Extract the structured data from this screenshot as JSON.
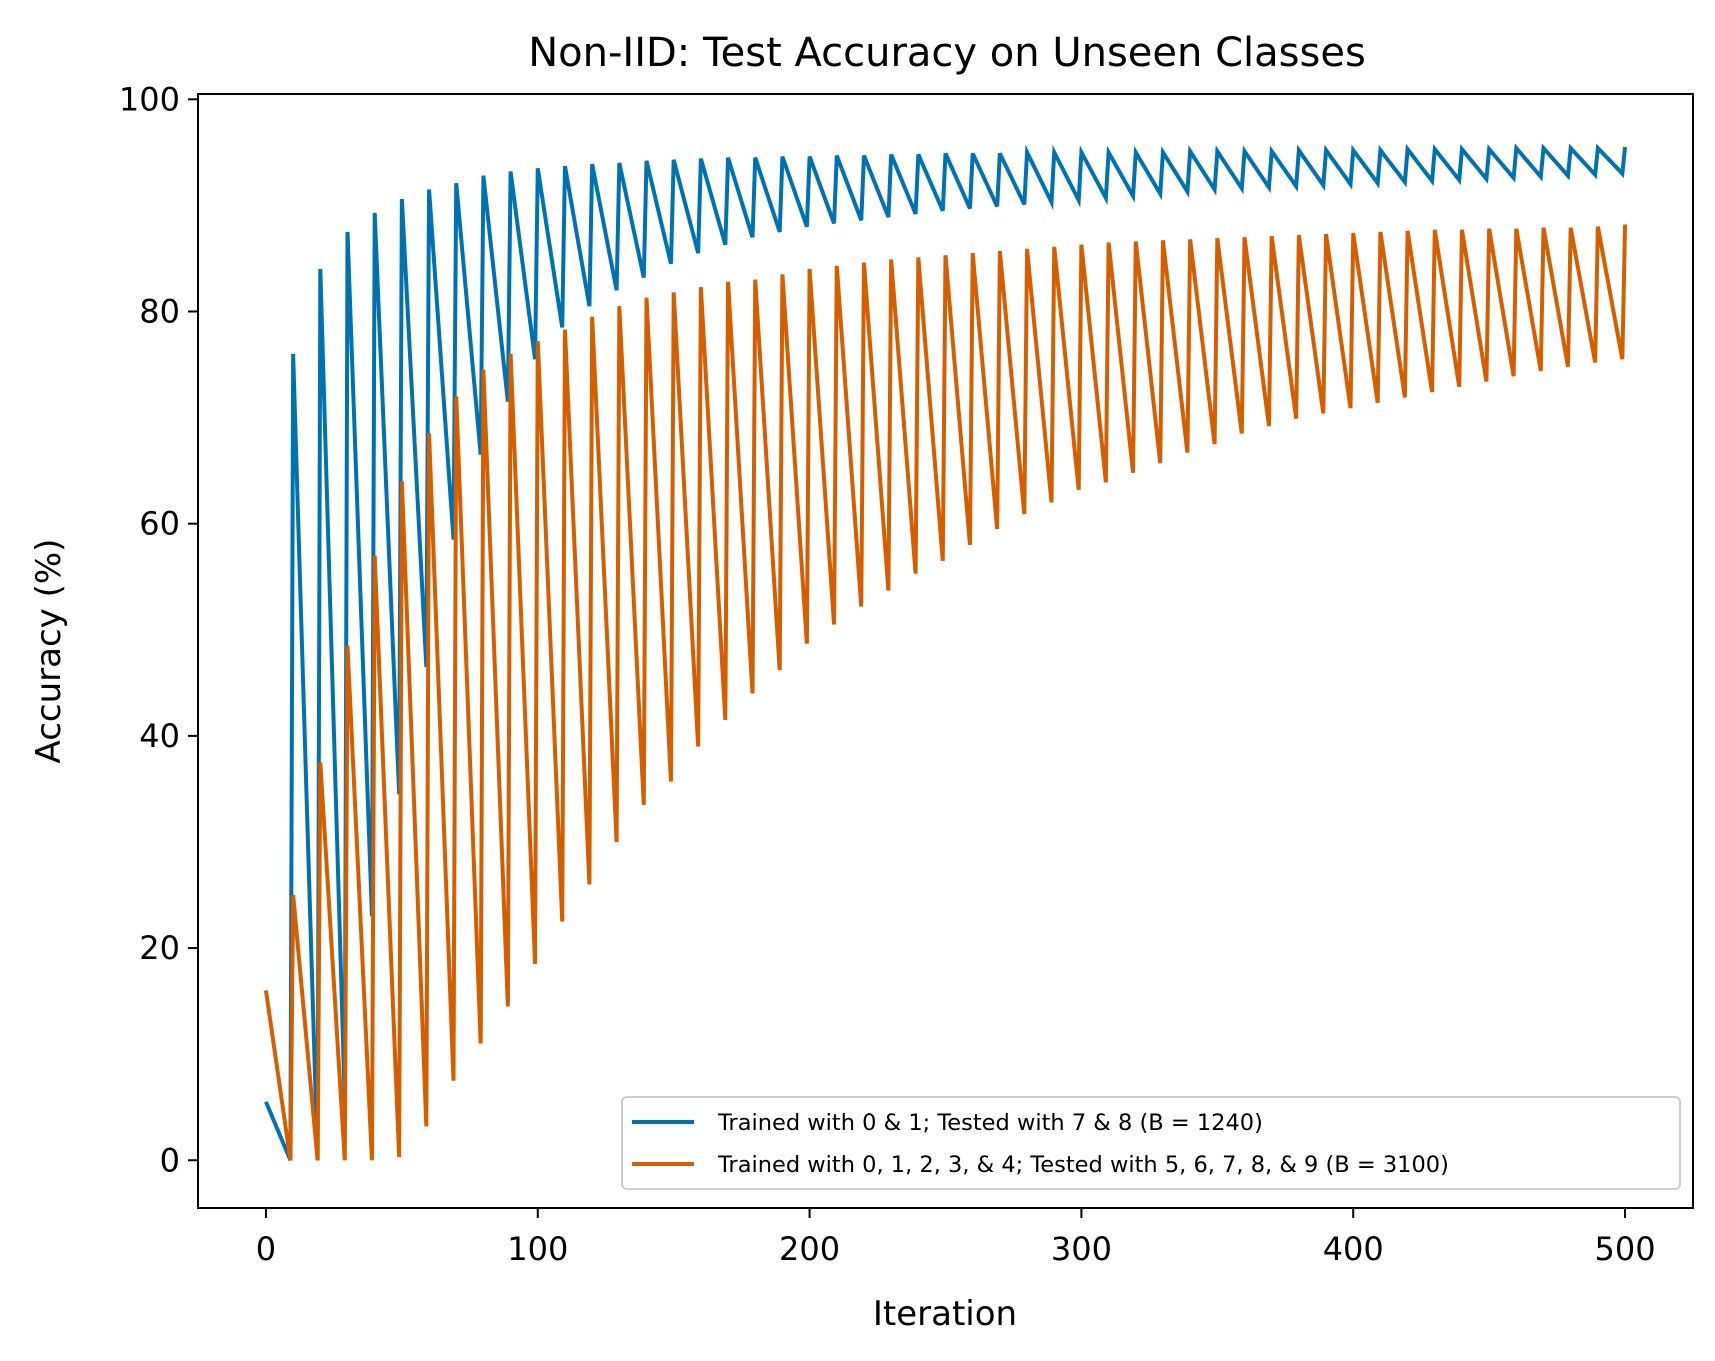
{
  "chart_data": {
    "type": "line",
    "title": "Non-IID: Test Accuracy on Unseen Classes",
    "xlabel": "Iteration",
    "ylabel": "Accuracy (%)",
    "xlim": [
      -25,
      525
    ],
    "ylim": [
      -4.5,
      100.5
    ],
    "xticks": [
      0,
      100,
      200,
      300,
      400,
      500
    ],
    "yticks": [
      0,
      20,
      40,
      60,
      80,
      100
    ],
    "legend_position": "lower-right",
    "pattern": "sawtooth: value drops linearly from the peak to the trough over each 9-iteration window, then jumps back up at every multiple of 10",
    "series": [
      {
        "name": "Trained with 0 & 1; Tested with 7 & 8 (B = 1240)",
        "color": "#0072b2",
        "cycle_start_iterations": [
          0,
          10,
          20,
          30,
          40,
          50,
          60,
          70,
          80,
          90,
          100,
          110,
          120,
          130,
          140,
          150,
          160,
          170,
          180,
          190,
          200,
          210,
          220,
          230,
          240,
          250,
          260,
          270,
          280,
          290,
          300,
          310,
          320,
          330,
          340,
          350,
          360,
          370,
          380,
          390,
          400,
          410,
          420,
          430,
          440,
          450,
          460,
          470,
          480,
          490
        ],
        "peaks": [
          5.5,
          76.0,
          84.0,
          87.5,
          89.3,
          90.6,
          91.5,
          92.1,
          92.8,
          93.2,
          93.5,
          93.7,
          93.9,
          94.0,
          94.2,
          94.3,
          94.4,
          94.5,
          94.5,
          94.6,
          94.6,
          94.7,
          94.7,
          94.8,
          94.8,
          94.9,
          94.9,
          94.9,
          95.0,
          95.0,
          95.0,
          95.0,
          95.0,
          95.0,
          95.1,
          95.1,
          95.1,
          95.1,
          95.2,
          95.2,
          95.2,
          95.2,
          95.3,
          95.3,
          95.3,
          95.3,
          95.4,
          95.4,
          95.4,
          95.4
        ],
        "troughs": [
          0.0,
          0.0,
          5.5,
          23.0,
          34.5,
          46.5,
          58.5,
          66.5,
          71.5,
          75.5,
          78.5,
          80.5,
          82.0,
          83.2,
          84.5,
          85.5,
          86.3,
          87.0,
          87.5,
          88.0,
          88.3,
          88.6,
          88.9,
          89.2,
          89.5,
          89.7,
          89.9,
          90.1,
          90.3,
          90.5,
          90.7,
          90.9,
          91.1,
          91.3,
          91.5,
          91.6,
          91.7,
          91.8,
          91.9,
          92.0,
          92.1,
          92.2,
          92.3,
          92.4,
          92.5,
          92.6,
          92.7,
          92.8,
          92.9,
          93.0
        ],
        "final": {
          "x": 500,
          "y": 95.5
        }
      },
      {
        "name": "Trained with 0, 1, 2, 3, & 4; Tested with 5, 6, 7, 8, & 9 (B = 3100)",
        "color": "#d55e00",
        "cycle_start_iterations": [
          0,
          10,
          20,
          30,
          40,
          50,
          60,
          70,
          80,
          90,
          100,
          110,
          120,
          130,
          140,
          150,
          160,
          170,
          180,
          190,
          200,
          210,
          220,
          230,
          240,
          250,
          260,
          270,
          280,
          290,
          300,
          310,
          320,
          330,
          340,
          350,
          360,
          370,
          380,
          390,
          400,
          410,
          420,
          430,
          440,
          450,
          460,
          470,
          480,
          490
        ],
        "peaks": [
          16.0,
          25.0,
          37.5,
          48.5,
          57.0,
          64.0,
          68.5,
          72.0,
          74.5,
          76.0,
          77.2,
          78.3,
          79.5,
          80.5,
          81.3,
          81.8,
          82.3,
          82.8,
          83.0,
          83.5,
          84.0,
          84.3,
          84.6,
          84.9,
          85.1,
          85.3,
          85.5,
          85.7,
          85.9,
          86.1,
          86.3,
          86.5,
          86.6,
          86.7,
          86.8,
          86.9,
          87.0,
          87.1,
          87.2,
          87.3,
          87.4,
          87.5,
          87.6,
          87.7,
          87.7,
          87.8,
          87.8,
          87.9,
          87.9,
          88.0
        ],
        "troughs": [
          0.0,
          0.0,
          0.0,
          0.0,
          0.3,
          3.2,
          7.5,
          11.0,
          14.5,
          18.5,
          22.5,
          26.0,
          30.0,
          33.5,
          35.7,
          39.0,
          41.5,
          44.0,
          46.2,
          48.7,
          50.5,
          52.2,
          53.7,
          55.3,
          56.5,
          58.0,
          59.5,
          60.9,
          62.0,
          63.2,
          63.9,
          64.8,
          65.7,
          66.7,
          67.5,
          68.5,
          69.2,
          69.9,
          70.4,
          70.9,
          71.4,
          71.9,
          72.4,
          72.9,
          73.4,
          73.9,
          74.4,
          74.8,
          75.2,
          75.5
        ],
        "final": {
          "x": 500,
          "y": 88.2
        }
      }
    ]
  }
}
